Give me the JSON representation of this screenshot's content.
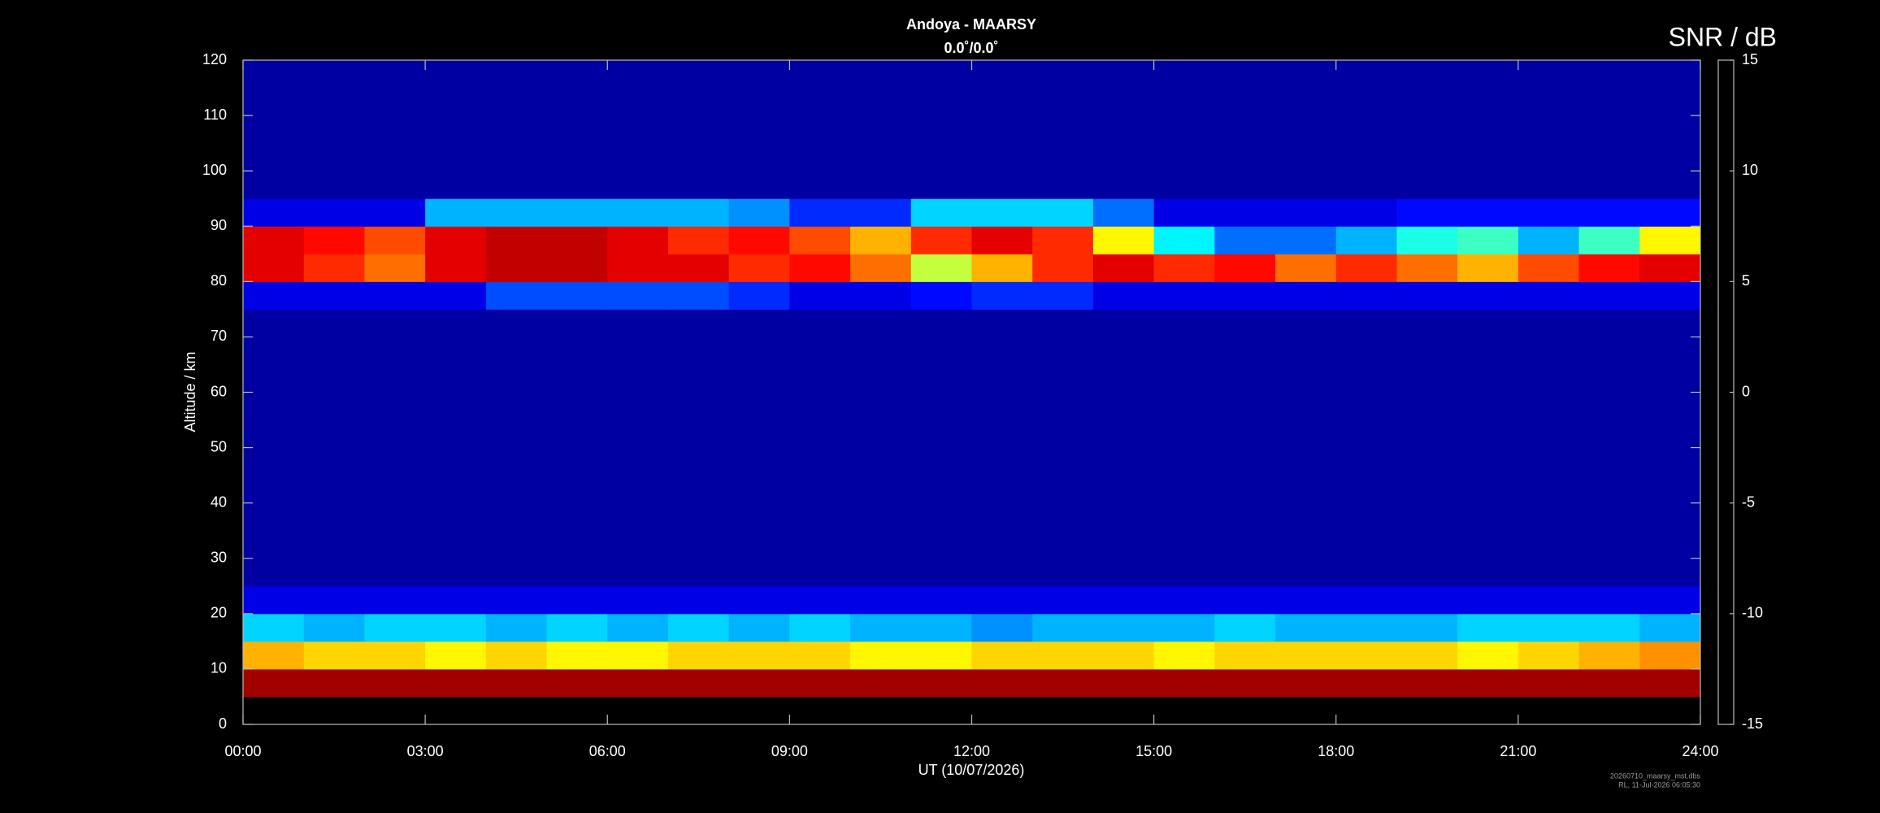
{
  "chart_data": {
    "type": "heatmap",
    "title": "Andoya - MAARSY",
    "subtitle": "0.0˚/0.0˚",
    "xlabel": "UT (10/07/2026)",
    "ylabel": "Altitude / km",
    "colorbar_label": "SNR / dB",
    "colormap": "jet",
    "footnotes": [
      "20260710_maarsy_mst.dbs",
      "RL, 11-Jul-2026 06:05:30"
    ],
    "xlim": [
      0,
      24
    ],
    "xticks": [
      {
        "value": 0,
        "label": "00:00"
      },
      {
        "value": 3,
        "label": "03:00"
      },
      {
        "value": 6,
        "label": "06:00"
      },
      {
        "value": 9,
        "label": "09:00"
      },
      {
        "value": 12,
        "label": "12:00"
      },
      {
        "value": 15,
        "label": "15:00"
      },
      {
        "value": 18,
        "label": "18:00"
      },
      {
        "value": 21,
        "label": "21:00"
      },
      {
        "value": 24,
        "label": "24:00"
      }
    ],
    "ylim": [
      0,
      120
    ],
    "yticks": [
      0,
      10,
      20,
      30,
      40,
      50,
      60,
      70,
      80,
      90,
      100,
      110,
      120
    ],
    "clim": [
      -15,
      15
    ],
    "cticks": [
      -15,
      -10,
      -5,
      0,
      5,
      10,
      15
    ],
    "xbins": [
      0,
      1,
      2,
      3,
      4,
      5,
      6,
      7,
      8,
      9,
      10,
      11,
      12,
      13,
      14,
      15,
      16,
      17,
      18,
      19,
      20,
      21,
      22,
      23,
      24
    ],
    "ybins": [
      0,
      5,
      10,
      15,
      20,
      25,
      30,
      35,
      40,
      45,
      50,
      55,
      60,
      65,
      70,
      75,
      80,
      85,
      90,
      95,
      100,
      105,
      110,
      115,
      120
    ],
    "z": [
      [
        null,
        null,
        null,
        null,
        null,
        null,
        null,
        null,
        null,
        null,
        null,
        null,
        null,
        null,
        null,
        null,
        null,
        null,
        null,
        null,
        null,
        null,
        null,
        null
      ],
      [
        14,
        14,
        14,
        14,
        14,
        14,
        14,
        14,
        14,
        14,
        14,
        14,
        14,
        14,
        14,
        14,
        14,
        14,
        14,
        14,
        14,
        14,
        14,
        14
      ],
      [
        6,
        5,
        5,
        4,
        5,
        4,
        4,
        5,
        5,
        5,
        4,
        4,
        5,
        5,
        5,
        4,
        5,
        5,
        5,
        5,
        4,
        5,
        6,
        7
      ],
      [
        -5,
        -6,
        -5,
        -5,
        -6,
        -5,
        -6,
        -5,
        -6,
        -5,
        -6,
        -6,
        -7,
        -6,
        -6,
        -6,
        -5,
        -6,
        -6,
        -6,
        -5,
        -5,
        -5,
        -6
      ],
      [
        -12,
        -12,
        -12,
        -12,
        -12,
        -12,
        -12,
        -12,
        -12,
        -12,
        -12,
        -12,
        -12,
        -12,
        -12,
        -12,
        -12,
        -12,
        -12,
        -12,
        -12,
        -12,
        -12,
        -12
      ],
      [
        -14,
        -14,
        -14,
        -14,
        -14,
        -14,
        -14,
        -14,
        -14,
        -14,
        -14,
        -14,
        -14,
        -14,
        -14,
        -14,
        -14,
        -14,
        -14,
        -14,
        -14,
        -14,
        -14,
        -14
      ],
      [
        -14,
        -14,
        -14,
        -14,
        -14,
        -14,
        -14,
        -14,
        -14,
        -14,
        -14,
        -14,
        -14,
        -14,
        -14,
        -14,
        -14,
        -14,
        -14,
        -14,
        -14,
        -14,
        -14,
        -14
      ],
      [
        -14,
        -14,
        -14,
        -14,
        -14,
        -14,
        -14,
        -14,
        -14,
        -14,
        -14,
        -14,
        -14,
        -14,
        -14,
        -14,
        -14,
        -14,
        -14,
        -14,
        -14,
        -14,
        -14,
        -14
      ],
      [
        -14,
        -14,
        -14,
        -14,
        -14,
        -14,
        -14,
        -14,
        -14,
        -14,
        -14,
        -14,
        -14,
        -14,
        -14,
        -14,
        -14,
        -14,
        -14,
        -14,
        -14,
        -14,
        -14,
        -14
      ],
      [
        -14,
        -14,
        -14,
        -14,
        -14,
        -14,
        -14,
        -14,
        -14,
        -14,
        -14,
        -14,
        -14,
        -14,
        -14,
        -14,
        -14,
        -14,
        -14,
        -14,
        -14,
        -14,
        -14,
        -14
      ],
      [
        -14,
        -14,
        -14,
        -14,
        -14,
        -14,
        -14,
        -14,
        -14,
        -14,
        -14,
        -14,
        -14,
        -14,
        -14,
        -14,
        -14,
        -14,
        -14,
        -14,
        -14,
        -14,
        -14,
        -14
      ],
      [
        -14,
        -14,
        -14,
        -14,
        -14,
        -14,
        -14,
        -14,
        -14,
        -14,
        -14,
        -14,
        -14,
        -14,
        -14,
        -14,
        -14,
        -14,
        -14,
        -14,
        -14,
        -14,
        -14,
        -14
      ],
      [
        -14,
        -14,
        -14,
        -14,
        -14,
        -14,
        -14,
        -14,
        -14,
        -14,
        -14,
        -14,
        -14,
        -14,
        -14,
        -14,
        -14,
        -14,
        -14,
        -14,
        -14,
        -14,
        -14,
        -14
      ],
      [
        -14,
        -14,
        -14,
        -14,
        -14,
        -14,
        -14,
        -14,
        -14,
        -14,
        -14,
        -14,
        -14,
        -14,
        -14,
        -14,
        -14,
        -14,
        -14,
        -14,
        -14,
        -14,
        -14,
        -14
      ],
      [
        -14,
        -14,
        -14,
        -14,
        -14,
        -14,
        -14,
        -14,
        -14,
        -14,
        -14,
        -14,
        -14,
        -14,
        -14,
        -14,
        -14,
        -14,
        -14,
        -14,
        -14,
        -14,
        -14,
        -14
      ],
      [
        -12,
        -12,
        -12,
        -12,
        -9,
        -9,
        -9,
        -9,
        -10,
        -12,
        -12,
        -11,
        -10,
        -10,
        -12,
        -12,
        -12,
        -12,
        -12,
        -12,
        -12,
        -12,
        -12,
        -12
      ],
      [
        12,
        10,
        8,
        12,
        13,
        13,
        12,
        12,
        10,
        11,
        8,
        2,
        6,
        10,
        12,
        10,
        11,
        8,
        10,
        8,
        6,
        9,
        11,
        12
      ],
      [
        12,
        11,
        9,
        12,
        13,
        13,
        12,
        10,
        11,
        9,
        6,
        10,
        12,
        10,
        4,
        -4,
        -8,
        -8,
        -6,
        -3,
        -2,
        -6,
        -2,
        4
      ],
      [
        -12,
        -12,
        -12,
        -6,
        -6,
        -6,
        -6,
        -6,
        -7,
        -10,
        -10,
        -5,
        -5,
        -5,
        -8,
        -12,
        -12,
        -12,
        -12,
        -11,
        -11,
        -11,
        -11,
        -11
      ],
      [
        -14,
        -14,
        -14,
        -14,
        -14,
        -14,
        -14,
        -14,
        -14,
        -14,
        -14,
        -14,
        -14,
        -14,
        -14,
        -14,
        -14,
        -14,
        -14,
        -14,
        -14,
        -14,
        -14,
        -14
      ],
      [
        -14,
        -14,
        -14,
        -14,
        -14,
        -14,
        -14,
        -14,
        -14,
        -14,
        -14,
        -14,
        -14,
        -14,
        -14,
        -14,
        -14,
        -14,
        -14,
        -14,
        -14,
        -14,
        -14,
        -14
      ],
      [
        -14,
        -14,
        -14,
        -14,
        -14,
        -14,
        -14,
        -14,
        -14,
        -14,
        -14,
        -14,
        -14,
        -14,
        -14,
        -14,
        -14,
        -14,
        -14,
        -14,
        -14,
        -14,
        -14,
        -14
      ],
      [
        -14,
        -14,
        -14,
        -14,
        -14,
        -14,
        -14,
        -14,
        -14,
        -14,
        -14,
        -14,
        -14,
        -14,
        -14,
        -14,
        -14,
        -14,
        -14,
        -14,
        -14,
        -14,
        -14,
        -14
      ],
      [
        -14,
        -14,
        -14,
        -14,
        -14,
        -14,
        -14,
        -14,
        -14,
        -14,
        -14,
        -14,
        -14,
        -14,
        -14,
        -14,
        -14,
        -14,
        -14,
        -14,
        -14,
        -14,
        -14,
        -14
      ]
    ]
  }
}
